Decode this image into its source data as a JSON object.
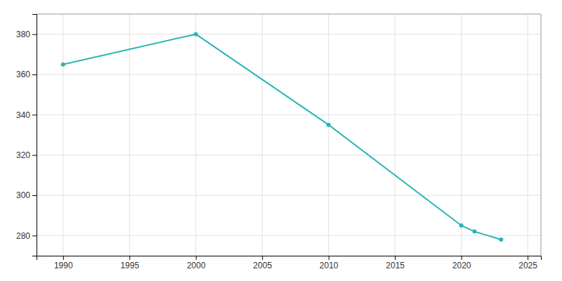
{
  "chart_data": {
    "type": "line",
    "x": [
      1990,
      2000,
      2010,
      2020,
      2021,
      2023
    ],
    "values": [
      365,
      380,
      335,
      285,
      282,
      278
    ],
    "color": "#2ab5b5",
    "marker": "circle",
    "xlim": [
      1988,
      2026
    ],
    "ylim": [
      270,
      390
    ],
    "xticks": [
      1990,
      1995,
      2000,
      2005,
      2010,
      2015,
      2020,
      2025
    ],
    "yticks": [
      280,
      300,
      320,
      340,
      360,
      380
    ],
    "grid": true
  }
}
